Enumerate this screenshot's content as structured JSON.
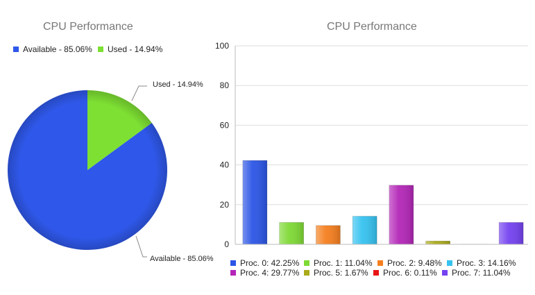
{
  "chart_data": [
    {
      "type": "pie",
      "title": "CPU Performance",
      "slices": [
        {
          "label": "Available - 85.06%",
          "value": 85.06,
          "color": "#2f58ea"
        },
        {
          "label": "Used - 14.94%",
          "value": 14.94,
          "color": "#7ee033"
        }
      ],
      "legend_placement": "top"
    },
    {
      "type": "bar",
      "title": "CPU Performance",
      "categories": [
        "Proc. 0",
        "Proc. 1",
        "Proc. 2",
        "Proc. 3",
        "Proc. 4",
        "Proc. 5",
        "Proc. 6",
        "Proc. 7"
      ],
      "values": [
        42.25,
        11.04,
        9.48,
        14.16,
        29.77,
        1.67,
        0.11,
        11.04
      ],
      "legend": [
        "Proc. 0: 42.25%",
        "Proc. 1: 11.04%",
        "Proc. 2: 9.48%",
        "Proc. 3: 14.16%",
        "Proc. 4: 29.77%",
        "Proc. 5: 1.67%",
        "Proc. 6: 0.11%",
        "Proc. 7: 11.04%"
      ],
      "colors": [
        "#2b55e5",
        "#7ed934",
        "#f57f1f",
        "#35c2f0",
        "#b326b7",
        "#aaaa1a",
        "#e81515",
        "#7442f0"
      ],
      "yticks": [
        "0",
        "20",
        "40",
        "60",
        "80",
        "100"
      ],
      "ylim": [
        0,
        100
      ],
      "grid": true,
      "legend_placement": "bottom"
    }
  ]
}
